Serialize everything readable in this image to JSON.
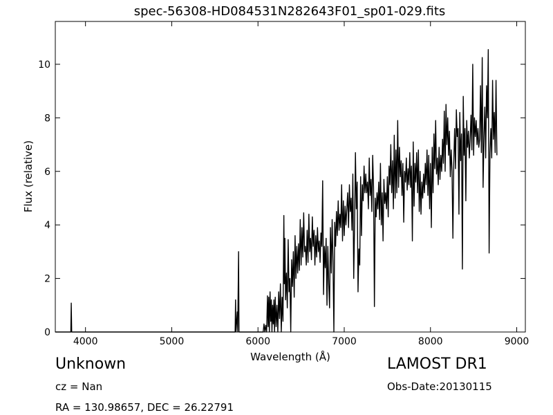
{
  "chart_data": {
    "type": "line",
    "title": "spec-56308-HD084531N282643F01_sp01-029.fits",
    "xlabel": "Wavelength (Å)",
    "ylabel": "Flux (relative)",
    "xlim": [
      3650,
      9100
    ],
    "ylim": [
      0,
      11.6
    ],
    "x_ticks": [
      4000,
      5000,
      6000,
      7000,
      8000,
      9000
    ],
    "y_ticks": [
      0,
      2,
      4,
      6,
      8,
      10
    ],
    "grid": false,
    "series": [
      {
        "color": "#000000",
        "points": [
          [
            3650,
            0
          ],
          [
            3830,
            0
          ],
          [
            3835,
            1.08
          ],
          [
            3840,
            0
          ],
          [
            5735,
            0
          ],
          [
            5740,
            1.2
          ],
          [
            5745,
            0
          ],
          [
            5760,
            0.75
          ],
          [
            5765,
            0
          ],
          [
            5775,
            3.0
          ],
          [
            5780,
            0
          ],
          [
            6060,
            0
          ],
          [
            6070,
            0.3
          ],
          [
            6080,
            0
          ],
          [
            6090,
            0.25
          ],
          [
            6100,
            0
          ],
          [
            6110,
            1.35
          ],
          [
            6118,
            0.2
          ],
          [
            6125,
            1.3
          ],
          [
            6132,
            0
          ],
          [
            6140,
            1.5
          ],
          [
            6148,
            0.4
          ],
          [
            6155,
            1.2
          ],
          [
            6162,
            0
          ],
          [
            6170,
            1.0
          ],
          [
            6178,
            0.3
          ],
          [
            6185,
            1.2
          ],
          [
            6192,
            0
          ],
          [
            6200,
            1.3
          ],
          [
            6210,
            0.2
          ],
          [
            6220,
            1.0
          ],
          [
            6230,
            0
          ],
          [
            6240,
            1.5
          ],
          [
            6250,
            0.5
          ],
          [
            6260,
            1.8
          ],
          [
            6270,
            0
          ],
          [
            6280,
            1.3
          ],
          [
            6290,
            0.4
          ],
          [
            6300,
            4.35
          ],
          [
            6306,
            1.8
          ],
          [
            6312,
            3.5
          ],
          [
            6320,
            1.2
          ],
          [
            6330,
            2.2
          ],
          [
            6340,
            0.9
          ],
          [
            6350,
            3.45
          ],
          [
            6360,
            1.5
          ],
          [
            6370,
            2.0
          ],
          [
            6380,
            0
          ],
          [
            6390,
            2.7
          ],
          [
            6400,
            1.7
          ],
          [
            6410,
            3.0
          ],
          [
            6420,
            1.3
          ],
          [
            6430,
            3.6
          ],
          [
            6440,
            2.0
          ],
          [
            6450,
            3.2
          ],
          [
            6460,
            2.2
          ],
          [
            6470,
            3.3
          ],
          [
            6480,
            2.3
          ],
          [
            6490,
            4.2
          ],
          [
            6500,
            2.5
          ],
          [
            6510,
            3.9
          ],
          [
            6520,
            2.8
          ],
          [
            6530,
            4.45
          ],
          [
            6540,
            3.0
          ],
          [
            6550,
            3.2
          ],
          [
            6560,
            2.5
          ],
          [
            6570,
            3.8
          ],
          [
            6580,
            2.6
          ],
          [
            6590,
            4.4
          ],
          [
            6600,
            3.0
          ],
          [
            6610,
            3.5
          ],
          [
            6620,
            2.7
          ],
          [
            6630,
            4.3
          ],
          [
            6640,
            3.2
          ],
          [
            6650,
            3.8
          ],
          [
            6660,
            2.5
          ],
          [
            6670,
            3.6
          ],
          [
            6680,
            2.8
          ],
          [
            6690,
            3.9
          ],
          [
            6700,
            3.0
          ],
          [
            6710,
            3.4
          ],
          [
            6720,
            2.6
          ],
          [
            6730,
            3.7
          ],
          [
            6740,
            3.2
          ],
          [
            6750,
            5.65
          ],
          [
            6760,
            1.4
          ],
          [
            6770,
            3.2
          ],
          [
            6780,
            2.4
          ],
          [
            6790,
            3.5
          ],
          [
            6800,
            1.0
          ],
          [
            6810,
            3.2
          ],
          [
            6820,
            1.8
          ],
          [
            6830,
            0.9
          ],
          [
            6840,
            3.9
          ],
          [
            6850,
            2.2
          ],
          [
            6860,
            4.2
          ],
          [
            6870,
            2.6
          ],
          [
            6880,
            0
          ],
          [
            6890,
            4.1
          ],
          [
            6900,
            3.2
          ],
          [
            6910,
            4.5
          ],
          [
            6920,
            3.6
          ],
          [
            6930,
            4.9
          ],
          [
            6940,
            3.8
          ],
          [
            6950,
            4.4
          ],
          [
            6960,
            3.9
          ],
          [
            6970,
            5.5
          ],
          [
            6980,
            3.4
          ],
          [
            6990,
            4.9
          ],
          [
            7000,
            3.6
          ],
          [
            7010,
            4.7
          ],
          [
            7020,
            4.0
          ],
          [
            7030,
            4.6
          ],
          [
            7040,
            5.2
          ],
          [
            7050,
            3.9
          ],
          [
            7060,
            5.5
          ],
          [
            7070,
            4.5
          ],
          [
            7080,
            5.0
          ],
          [
            7090,
            3.8
          ],
          [
            7100,
            5.9
          ],
          [
            7110,
            2.0
          ],
          [
            7120,
            4.0
          ],
          [
            7130,
            6.7
          ],
          [
            7140,
            4.6
          ],
          [
            7150,
            5.6
          ],
          [
            7160,
            1.5
          ],
          [
            7170,
            3.1
          ],
          [
            7180,
            2.5
          ],
          [
            7190,
            5.8
          ],
          [
            7200,
            3.6
          ],
          [
            7210,
            5.5
          ],
          [
            7220,
            4.9
          ],
          [
            7230,
            6.2
          ],
          [
            7240,
            5.2
          ],
          [
            7250,
            5.9
          ],
          [
            7260,
            5.2
          ],
          [
            7270,
            5.6
          ],
          [
            7280,
            4.6
          ],
          [
            7290,
            6.5
          ],
          [
            7300,
            5.1
          ],
          [
            7310,
            5.7
          ],
          [
            7320,
            4.5
          ],
          [
            7330,
            6.6
          ],
          [
            7340,
            5.4
          ],
          [
            7350,
            0.95
          ],
          [
            7360,
            5.0
          ],
          [
            7370,
            4.3
          ],
          [
            7380,
            5.2
          ],
          [
            7390,
            4.6
          ],
          [
            7400,
            5.6
          ],
          [
            7410,
            4.2
          ],
          [
            7420,
            6.3
          ],
          [
            7430,
            4.0
          ],
          [
            7440,
            5.2
          ],
          [
            7450,
            3.4
          ],
          [
            7460,
            5.7
          ],
          [
            7470,
            4.8
          ],
          [
            7480,
            5.2
          ],
          [
            7490,
            4.6
          ],
          [
            7500,
            5.8
          ],
          [
            7510,
            4.3
          ],
          [
            7520,
            6.2
          ],
          [
            7530,
            5.5
          ],
          [
            7540,
            7.0
          ],
          [
            7550,
            5.2
          ],
          [
            7560,
            6.4
          ],
          [
            7570,
            4.6
          ],
          [
            7580,
            7.35
          ],
          [
            7590,
            5.0
          ],
          [
            7600,
            6.8
          ],
          [
            7610,
            5.2
          ],
          [
            7620,
            7.9
          ],
          [
            7630,
            5.4
          ],
          [
            7640,
            6.9
          ],
          [
            7650,
            5.8
          ],
          [
            7660,
            6.4
          ],
          [
            7670,
            5.1
          ],
          [
            7680,
            6.3
          ],
          [
            7690,
            4.1
          ],
          [
            7700,
            6.0
          ],
          [
            7710,
            5.6
          ],
          [
            7720,
            6.5
          ],
          [
            7730,
            5.3
          ],
          [
            7740,
            6.1
          ],
          [
            7750,
            5.5
          ],
          [
            7760,
            6.7
          ],
          [
            7770,
            5.4
          ],
          [
            7780,
            6.2
          ],
          [
            7790,
            3.4
          ],
          [
            7800,
            7.1
          ],
          [
            7810,
            4.7
          ],
          [
            7820,
            6.3
          ],
          [
            7830,
            5.6
          ],
          [
            7840,
            6.7
          ],
          [
            7850,
            5.2
          ],
          [
            7860,
            6.8
          ],
          [
            7870,
            4.5
          ],
          [
            7880,
            6.0
          ],
          [
            7890,
            4.4
          ],
          [
            7900,
            5.6
          ],
          [
            7910,
            5.0
          ],
          [
            7920,
            5.9
          ],
          [
            7930,
            5.2
          ],
          [
            7940,
            6.3
          ],
          [
            7950,
            5.5
          ],
          [
            7960,
            6.8
          ],
          [
            7970,
            5.1
          ],
          [
            7980,
            6.6
          ],
          [
            7990,
            4.6
          ],
          [
            8000,
            6.3
          ],
          [
            8010,
            3.9
          ],
          [
            8020,
            6.9
          ],
          [
            8030,
            5.2
          ],
          [
            8040,
            7.4
          ],
          [
            8050,
            6.1
          ],
          [
            8060,
            7.9
          ],
          [
            8070,
            5.9
          ],
          [
            8080,
            6.5
          ],
          [
            8090,
            5.5
          ],
          [
            8100,
            6.9
          ],
          [
            8110,
            5.7
          ],
          [
            8120,
            6.6
          ],
          [
            8130,
            6.0
          ],
          [
            8140,
            7.2
          ],
          [
            8150,
            6.3
          ],
          [
            8160,
            8.25
          ],
          [
            8170,
            6.0
          ],
          [
            8180,
            8.5
          ],
          [
            8190,
            7.0
          ],
          [
            8200,
            8.0
          ],
          [
            8210,
            6.6
          ],
          [
            8220,
            7.5
          ],
          [
            8230,
            5.8
          ],
          [
            8240,
            6.8
          ],
          [
            8250,
            6.0
          ],
          [
            8260,
            3.5
          ],
          [
            8270,
            6.3
          ],
          [
            8280,
            7.6
          ],
          [
            8290,
            6.1
          ],
          [
            8300,
            8.3
          ],
          [
            8310,
            7.3
          ],
          [
            8320,
            7.6
          ],
          [
            8330,
            4.4
          ],
          [
            8340,
            8.2
          ],
          [
            8350,
            6.4
          ],
          [
            8360,
            7.4
          ],
          [
            8370,
            2.35
          ],
          [
            8380,
            8.8
          ],
          [
            8390,
            6.6
          ],
          [
            8400,
            7.6
          ],
          [
            8410,
            4.9
          ],
          [
            8420,
            7.9
          ],
          [
            8430,
            6.9
          ],
          [
            8440,
            7.5
          ],
          [
            8450,
            6.5
          ],
          [
            8460,
            7.2
          ],
          [
            8470,
            8.1
          ],
          [
            8480,
            6.8
          ],
          [
            8490,
            10.0
          ],
          [
            8500,
            6.6
          ],
          [
            8510,
            8.0
          ],
          [
            8520,
            7.3
          ],
          [
            8530,
            7.9
          ],
          [
            8540,
            7.0
          ],
          [
            8550,
            7.6
          ],
          [
            8560,
            6.9
          ],
          [
            8570,
            7.2
          ],
          [
            8580,
            9.2
          ],
          [
            8590,
            6.7
          ],
          [
            8600,
            10.25
          ],
          [
            8610,
            5.4
          ],
          [
            8620,
            7.3
          ],
          [
            8630,
            8.4
          ],
          [
            8640,
            6.5
          ],
          [
            8650,
            9.2
          ],
          [
            8660,
            8.0
          ],
          [
            8670,
            10.55
          ],
          [
            8680,
            2.95
          ],
          [
            8690,
            6.7
          ],
          [
            8700,
            7.6
          ],
          [
            8710,
            6.5
          ],
          [
            8720,
            9.4
          ],
          [
            8730,
            7.2
          ],
          [
            8740,
            8.2
          ],
          [
            8750,
            6.7
          ],
          [
            8760,
            9.4
          ],
          [
            8770,
            6.6
          ]
        ]
      }
    ]
  },
  "info": {
    "object_class": "Unknown",
    "redshift": "cz = Nan",
    "coordinates": "RA = 130.98657, DEC = 26.22791",
    "survey": "LAMOST DR1",
    "obs_date": "Obs-Date:20130115"
  }
}
